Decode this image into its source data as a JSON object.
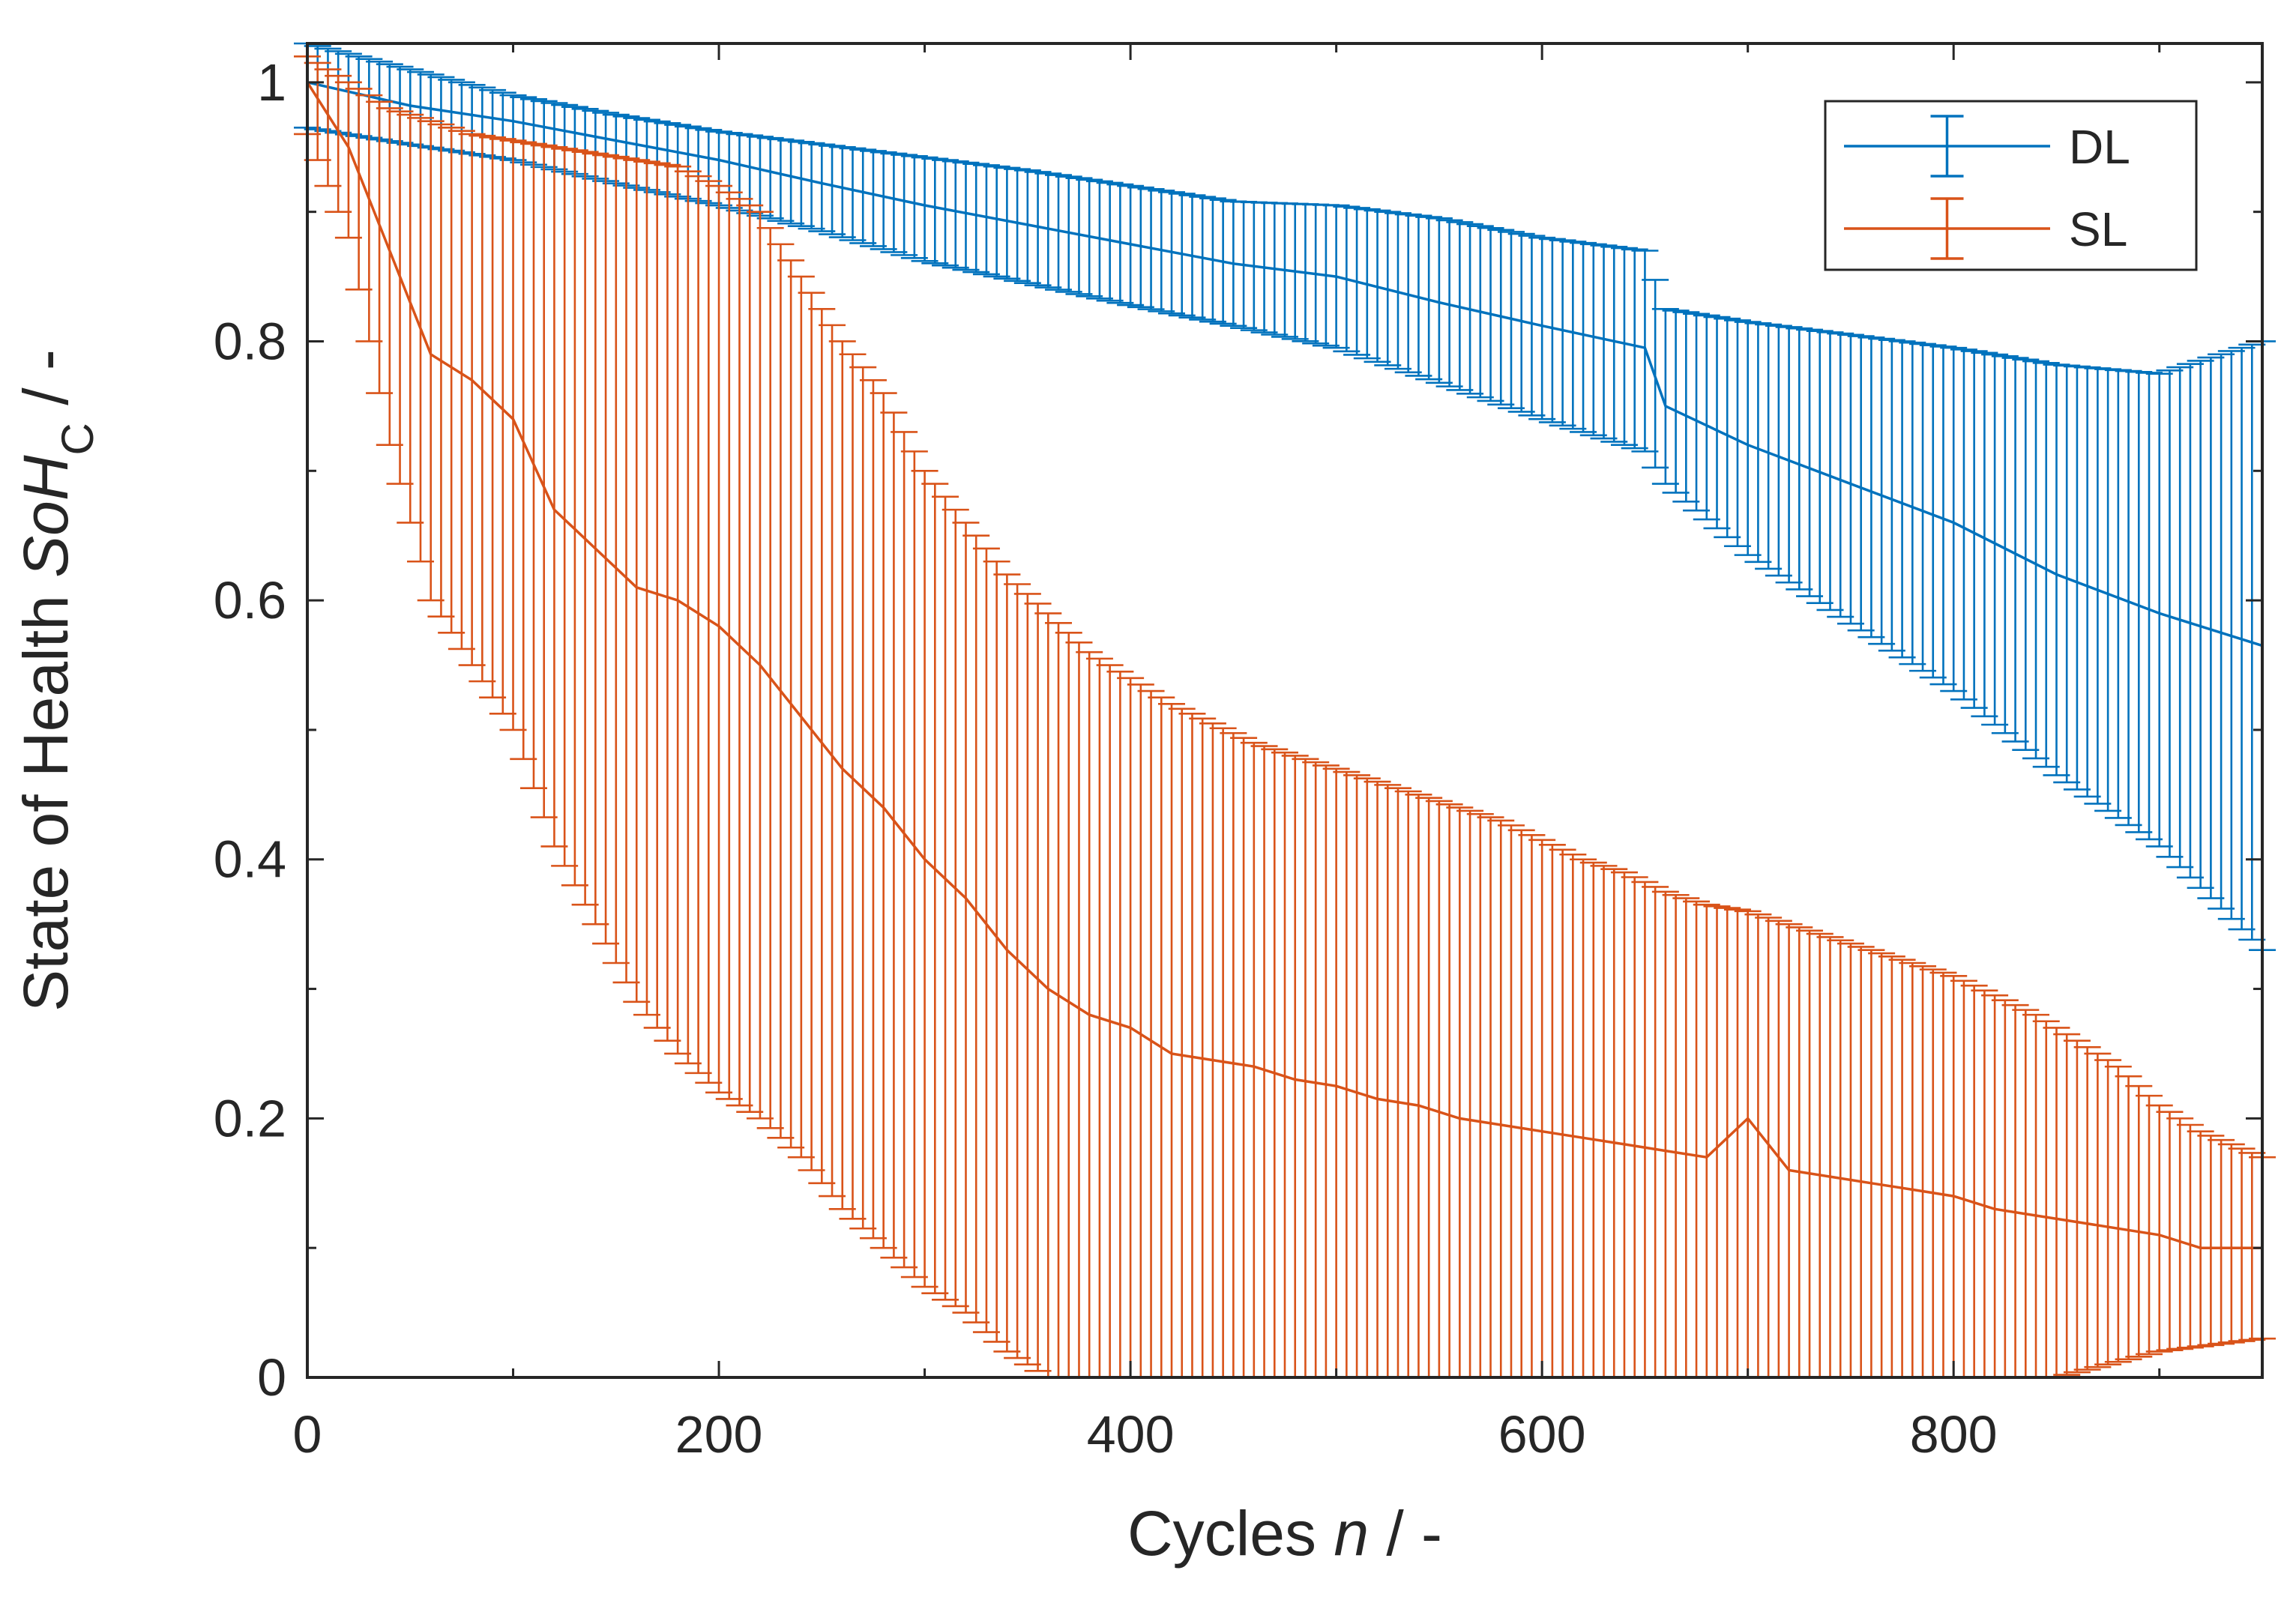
{
  "chart_data": {
    "type": "line",
    "errorbars": true,
    "xlabel": "Cycles",
    "xlabel_var": "n",
    "xlabel_unit": " / -",
    "ylabel": "State of Health",
    "ylabel_var": "SoH",
    "ylabel_sub": "C",
    "ylabel_unit": " / -",
    "xlim": [
      0,
      950
    ],
    "ylim": [
      0,
      1.03
    ],
    "xticks": [
      0,
      200,
      400,
      600,
      800
    ],
    "yticks": [
      0,
      0.2,
      0.4,
      0.6,
      0.8,
      1
    ],
    "xtick_labels": [
      "0",
      "200",
      "400",
      "600",
      "800"
    ],
    "ytick_labels": [
      "0",
      "0.2",
      "0.4",
      "0.6",
      "0.8",
      "1"
    ],
    "legend_position": "top-right",
    "series": [
      {
        "name": "DL",
        "color": "#0072BD",
        "points": [
          [
            0,
            1.0
          ],
          [
            50,
            0.982
          ],
          [
            100,
            0.97
          ],
          [
            150,
            0.955
          ],
          [
            200,
            0.94
          ],
          [
            250,
            0.922
          ],
          [
            300,
            0.905
          ],
          [
            350,
            0.89
          ],
          [
            400,
            0.875
          ],
          [
            450,
            0.86
          ],
          [
            500,
            0.85
          ],
          [
            550,
            0.83
          ],
          [
            600,
            0.812
          ],
          [
            650,
            0.795
          ],
          [
            660,
            0.75
          ],
          [
            700,
            0.72
          ],
          [
            750,
            0.69
          ],
          [
            800,
            0.66
          ],
          [
            850,
            0.62
          ],
          [
            900,
            0.59
          ],
          [
            950,
            0.565
          ]
        ],
        "upper": [
          [
            0,
            1.03
          ],
          [
            50,
            1.01
          ],
          [
            100,
            0.99
          ],
          [
            150,
            0.975
          ],
          [
            200,
            0.962
          ],
          [
            250,
            0.952
          ],
          [
            300,
            0.942
          ],
          [
            350,
            0.932
          ],
          [
            400,
            0.92
          ],
          [
            450,
            0.908
          ],
          [
            500,
            0.905
          ],
          [
            550,
            0.895
          ],
          [
            600,
            0.88
          ],
          [
            650,
            0.87
          ],
          [
            660,
            0.825
          ],
          [
            700,
            0.815
          ],
          [
            750,
            0.805
          ],
          [
            800,
            0.795
          ],
          [
            850,
            0.782
          ],
          [
            900,
            0.775
          ],
          [
            950,
            0.8
          ]
        ],
        "lower": [
          [
            0,
            0.965
          ],
          [
            50,
            0.952
          ],
          [
            100,
            0.94
          ],
          [
            150,
            0.922
          ],
          [
            200,
            0.905
          ],
          [
            250,
            0.885
          ],
          [
            300,
            0.862
          ],
          [
            350,
            0.845
          ],
          [
            400,
            0.828
          ],
          [
            450,
            0.812
          ],
          [
            500,
            0.795
          ],
          [
            550,
            0.768
          ],
          [
            600,
            0.74
          ],
          [
            650,
            0.715
          ],
          [
            660,
            0.69
          ],
          [
            700,
            0.635
          ],
          [
            750,
            0.582
          ],
          [
            800,
            0.53
          ],
          [
            850,
            0.465
          ],
          [
            900,
            0.41
          ],
          [
            950,
            0.33
          ]
        ]
      },
      {
        "name": "SL",
        "color": "#D95319",
        "points": [
          [
            0,
            1.0
          ],
          [
            20,
            0.95
          ],
          [
            40,
            0.87
          ],
          [
            60,
            0.79
          ],
          [
            80,
            0.77
          ],
          [
            100,
            0.74
          ],
          [
            120,
            0.67
          ],
          [
            140,
            0.64
          ],
          [
            160,
            0.61
          ],
          [
            180,
            0.6
          ],
          [
            200,
            0.58
          ],
          [
            220,
            0.55
          ],
          [
            240,
            0.51
          ],
          [
            260,
            0.47
          ],
          [
            280,
            0.44
          ],
          [
            300,
            0.4
          ],
          [
            320,
            0.37
          ],
          [
            340,
            0.33
          ],
          [
            360,
            0.3
          ],
          [
            380,
            0.28
          ],
          [
            400,
            0.27
          ],
          [
            420,
            0.25
          ],
          [
            440,
            0.245
          ],
          [
            460,
            0.24
          ],
          [
            480,
            0.23
          ],
          [
            500,
            0.225
          ],
          [
            520,
            0.215
          ],
          [
            540,
            0.21
          ],
          [
            560,
            0.2
          ],
          [
            580,
            0.195
          ],
          [
            600,
            0.19
          ],
          [
            620,
            0.185
          ],
          [
            640,
            0.18
          ],
          [
            660,
            0.175
          ],
          [
            680,
            0.17
          ],
          [
            700,
            0.2
          ],
          [
            720,
            0.16
          ],
          [
            740,
            0.155
          ],
          [
            760,
            0.15
          ],
          [
            780,
            0.145
          ],
          [
            800,
            0.14
          ],
          [
            820,
            0.13
          ],
          [
            840,
            0.125
          ],
          [
            860,
            0.12
          ],
          [
            880,
            0.115
          ],
          [
            900,
            0.11
          ],
          [
            920,
            0.1
          ],
          [
            950,
            0.1
          ]
        ],
        "upper": [
          [
            0,
            1.02
          ],
          [
            20,
            1.0
          ],
          [
            40,
            0.98
          ],
          [
            60,
            0.97
          ],
          [
            80,
            0.96
          ],
          [
            100,
            0.955
          ],
          [
            120,
            0.95
          ],
          [
            140,
            0.945
          ],
          [
            160,
            0.94
          ],
          [
            180,
            0.935
          ],
          [
            200,
            0.92
          ],
          [
            220,
            0.9
          ],
          [
            240,
            0.85
          ],
          [
            260,
            0.8
          ],
          [
            280,
            0.76
          ],
          [
            300,
            0.7
          ],
          [
            320,
            0.66
          ],
          [
            340,
            0.62
          ],
          [
            360,
            0.59
          ],
          [
            380,
            0.56
          ],
          [
            400,
            0.54
          ],
          [
            420,
            0.52
          ],
          [
            440,
            0.505
          ],
          [
            460,
            0.49
          ],
          [
            480,
            0.48
          ],
          [
            500,
            0.47
          ],
          [
            520,
            0.46
          ],
          [
            540,
            0.45
          ],
          [
            560,
            0.44
          ],
          [
            580,
            0.43
          ],
          [
            600,
            0.415
          ],
          [
            620,
            0.4
          ],
          [
            640,
            0.39
          ],
          [
            660,
            0.375
          ],
          [
            680,
            0.365
          ],
          [
            700,
            0.36
          ],
          [
            720,
            0.35
          ],
          [
            740,
            0.34
          ],
          [
            760,
            0.33
          ],
          [
            780,
            0.32
          ],
          [
            800,
            0.31
          ],
          [
            820,
            0.295
          ],
          [
            840,
            0.28
          ],
          [
            860,
            0.26
          ],
          [
            880,
            0.24
          ],
          [
            900,
            0.21
          ],
          [
            920,
            0.19
          ],
          [
            950,
            0.17
          ]
        ],
        "lower": [
          [
            0,
            0.96
          ],
          [
            20,
            0.88
          ],
          [
            40,
            0.72
          ],
          [
            60,
            0.6
          ],
          [
            80,
            0.55
          ],
          [
            100,
            0.5
          ],
          [
            120,
            0.41
          ],
          [
            140,
            0.35
          ],
          [
            160,
            0.29
          ],
          [
            180,
            0.25
          ],
          [
            200,
            0.22
          ],
          [
            220,
            0.2
          ],
          [
            240,
            0.17
          ],
          [
            260,
            0.13
          ],
          [
            280,
            0.1
          ],
          [
            300,
            0.07
          ],
          [
            320,
            0.05
          ],
          [
            340,
            0.02
          ],
          [
            360,
            0.0
          ],
          [
            380,
            0.0
          ],
          [
            400,
            0.0
          ],
          [
            450,
            0.0
          ],
          [
            500,
            0.0
          ],
          [
            550,
            0.0
          ],
          [
            600,
            0.0
          ],
          [
            650,
            0.0
          ],
          [
            700,
            0.0
          ],
          [
            750,
            0.0
          ],
          [
            800,
            0.0
          ],
          [
            850,
            0.0
          ],
          [
            900,
            0.02
          ],
          [
            950,
            0.03
          ]
        ]
      }
    ]
  }
}
